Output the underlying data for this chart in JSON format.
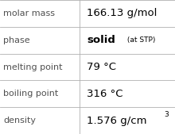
{
  "rows": [
    {
      "label": "molar mass",
      "value": "166.13 g/mol",
      "value_parts": null,
      "superscript": null
    },
    {
      "label": "phase",
      "value": null,
      "value_parts": [
        {
          "text": "solid",
          "bold": true
        },
        {
          "text": " (at STP)",
          "bold": false
        }
      ],
      "superscript": null
    },
    {
      "label": "melting point",
      "value": "79 °C",
      "value_parts": null,
      "superscript": null
    },
    {
      "label": "boiling point",
      "value": "316 °C",
      "value_parts": null,
      "superscript": null
    },
    {
      "label": "density",
      "value": "1.576 g/cm",
      "value_parts": null,
      "superscript": "3"
    }
  ],
  "col_split": 0.455,
  "bg_color": "#ffffff",
  "label_color": "#505050",
  "value_color": "#000000",
  "grid_color": "#b0b0b0",
  "label_fontsize": 8.0,
  "value_fontsize": 9.5,
  "small_fontsize": 6.5,
  "sup_fontsize": 6.5,
  "font_family": "DejaVu Sans"
}
